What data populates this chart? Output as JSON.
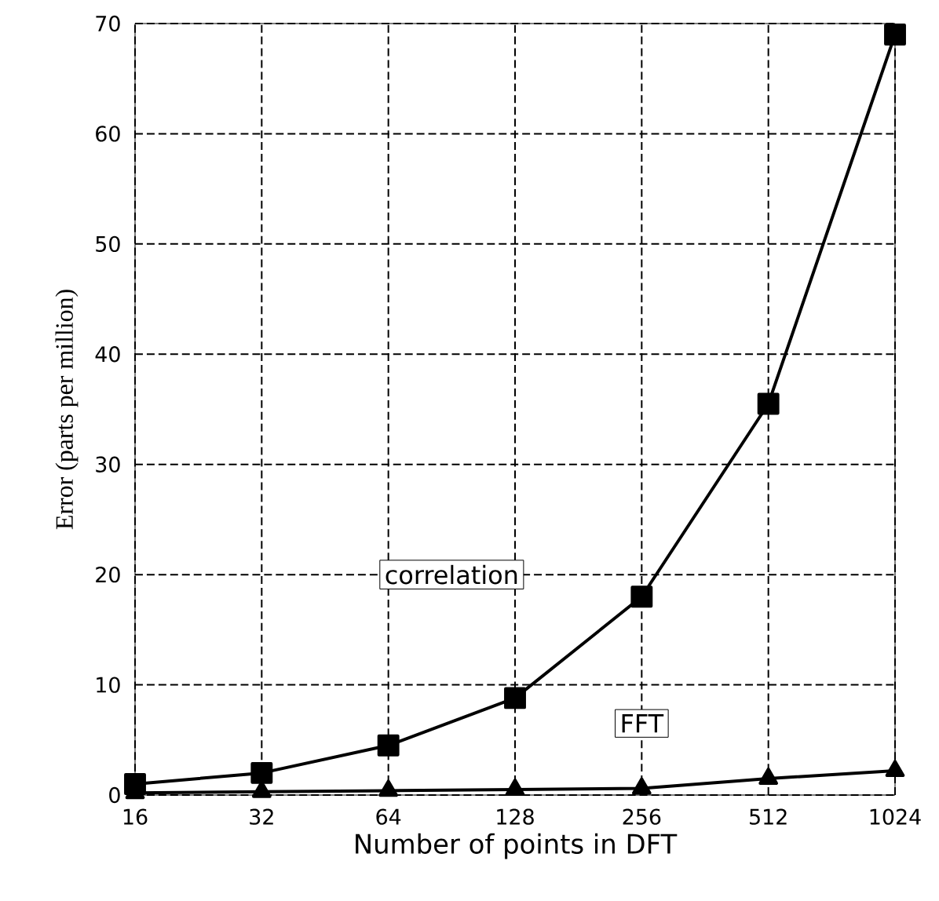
{
  "chart_data": {
    "type": "line",
    "xlabel": "Number of points in DFT",
    "ylabel": "Error (parts per million)",
    "categories": [
      "16",
      "32",
      "64",
      "128",
      "256",
      "512",
      "1024"
    ],
    "series": [
      {
        "name": "correlation",
        "color": "#000000",
        "marker": "square",
        "values": [
          1.0,
          2.0,
          4.5,
          8.8,
          18,
          35.5,
          69
        ]
      },
      {
        "name": "FFT",
        "color": "#000000",
        "marker": "triangle",
        "values": [
          0.2,
          0.3,
          0.4,
          0.5,
          0.6,
          1.5,
          2.2
        ]
      }
    ],
    "ylim": [
      0,
      70
    ],
    "yticks": [
      0,
      10,
      20,
      30,
      40,
      50,
      60,
      70
    ],
    "grid": true,
    "legend": false,
    "line_style": "solid"
  }
}
